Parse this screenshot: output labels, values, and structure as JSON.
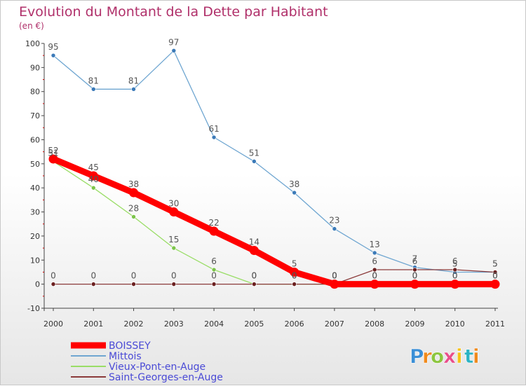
{
  "chart_data": {
    "type": "line",
    "title": "Evolution du Montant de la Dette par Habitant",
    "subtitle": "(en €)",
    "x": [
      "2000",
      "2001",
      "2002",
      "2003",
      "2004",
      "2005",
      "2006",
      "2007",
      "2008",
      "2009",
      "2010",
      "2011"
    ],
    "ylim": [
      -10,
      100
    ],
    "yticks": [
      -10,
      0,
      10,
      20,
      30,
      40,
      50,
      60,
      70,
      80,
      90,
      100
    ],
    "grid": false,
    "legend_position": "bottom-left",
    "series": [
      {
        "name": "BOISSEY",
        "color": "#ff0000",
        "values": [
          52,
          45,
          38,
          30,
          22,
          14,
          5,
          0,
          0,
          0,
          0,
          0
        ],
        "labels": [
          "52",
          "45",
          "38",
          "30",
          "22",
          "14",
          "5",
          "0",
          "0",
          "0",
          "0",
          "0"
        ]
      },
      {
        "name": "Mittois",
        "color": "#6fa6d1",
        "values": [
          95,
          81,
          81,
          97,
          61,
          51,
          38,
          23,
          13,
          7,
          5,
          5
        ],
        "labels": [
          "95",
          "81",
          "81",
          "97",
          "61",
          "51",
          "38",
          "23",
          "13",
          "7",
          "5",
          "5"
        ]
      },
      {
        "name": "Vieux-Pont-en-Auge",
        "color": "#99dd66",
        "values": [
          51,
          40,
          28,
          15,
          6,
          0,
          0,
          0,
          0,
          0,
          0,
          0
        ],
        "labels": [
          "51",
          "40",
          "28",
          "15",
          "6",
          "0",
          "0",
          "0",
          "0",
          "0",
          "0",
          "0"
        ]
      },
      {
        "name": "Saint-Georges-en-Auge",
        "color": "#8b3a3a",
        "values": [
          0,
          0,
          0,
          0,
          0,
          0,
          0,
          0,
          6,
          6,
          6,
          5
        ],
        "labels": [
          "0",
          "0",
          "0",
          "0",
          "0",
          "0",
          "0",
          "0",
          "6",
          "6",
          "6",
          "5"
        ]
      }
    ]
  },
  "logo": {
    "letters": [
      "P",
      "r",
      "o",
      "x",
      "i",
      "t",
      "i"
    ],
    "colors": [
      "#3b8fd6",
      "#f08a1c",
      "#8cc63f",
      "#e94e8a",
      "#f6c21a",
      "#2bb3c4",
      "#f08a1c"
    ]
  }
}
